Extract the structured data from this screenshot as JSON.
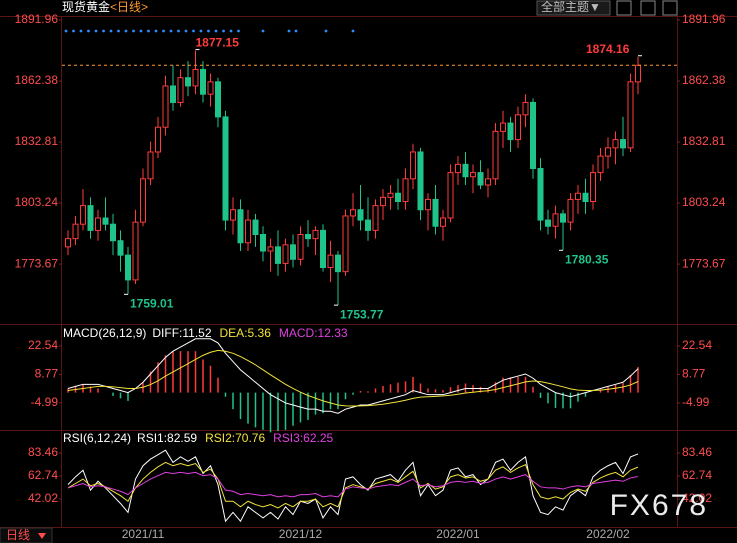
{
  "header": {
    "title": "现货黄金",
    "period": "<日线>",
    "theme_button": "全部主题▼"
  },
  "period_button": "日线",
  "watermark": "FX678",
  "chart_data": [
    {
      "type": "candlestick",
      "categories": [
        null,
        null,
        null,
        null,
        null,
        null,
        null,
        null,
        null,
        null,
        "2021/11",
        null,
        null,
        null,
        null,
        null,
        null,
        null,
        null,
        null,
        null,
        null,
        null,
        null,
        null,
        null,
        null,
        null,
        null,
        null,
        null,
        "2021/12",
        null,
        null,
        null,
        null,
        null,
        null,
        null,
        null,
        null,
        null,
        null,
        null,
        null,
        null,
        null,
        null,
        null,
        null,
        null,
        null,
        "2022/01",
        null,
        null,
        null,
        null,
        null,
        null,
        null,
        null,
        null,
        null,
        null,
        null,
        null,
        null,
        null,
        null,
        null,
        null,
        null,
        "2022/02",
        null,
        null,
        null,
        null
      ],
      "open": [
        1782,
        1786,
        1793,
        1802,
        1790,
        1796,
        1793,
        1785,
        1778,
        1766,
        1794,
        1815,
        1828,
        1840,
        1860,
        1852,
        1864,
        1860,
        1868,
        1856,
        1862,
        1845,
        1795,
        1800,
        1784,
        1795,
        1788,
        1780,
        1782,
        1774,
        1783,
        1776,
        1788,
        1786,
        1790,
        1772,
        1778,
        1770,
        1797,
        1800,
        1795,
        1790,
        1802,
        1806,
        1808,
        1804,
        1815,
        1828,
        1800,
        1805,
        1792,
        1796,
        1818,
        1822,
        1816,
        1818,
        1812,
        1815,
        1838,
        1842,
        1834,
        1846,
        1852,
        1820,
        1795,
        1792,
        1798,
        1794,
        1805,
        1808,
        1804,
        1818,
        1826,
        1830,
        1834,
        1830,
        1862
      ],
      "high": [
        1790,
        1797,
        1810,
        1806,
        1800,
        1806,
        1798,
        1790,
        1782,
        1800,
        1820,
        1833,
        1845,
        1865,
        1870,
        1868,
        1872,
        1877.15,
        1872,
        1866,
        1864,
        1848,
        1806,
        1805,
        1800,
        1798,
        1792,
        1786,
        1790,
        1786,
        1788,
        1792,
        1795,
        1792,
        1793,
        1785,
        1780,
        1800,
        1808,
        1812,
        1806,
        1805,
        1810,
        1812,
        1815,
        1820,
        1832,
        1830,
        1808,
        1812,
        1800,
        1822,
        1826,
        1828,
        1822,
        1824,
        1820,
        1842,
        1848,
        1845,
        1850,
        1856,
        1854,
        1825,
        1800,
        1802,
        1800,
        1808,
        1812,
        1815,
        1822,
        1830,
        1835,
        1838,
        1845,
        1866,
        1874.16
      ],
      "low": [
        1778,
        1783,
        1790,
        1786,
        1785,
        1790,
        1778,
        1770,
        1759.01,
        1764,
        1792,
        1812,
        1825,
        1836,
        1848,
        1850,
        1855,
        1856,
        1852,
        1850,
        1840,
        1790,
        1788,
        1780,
        1780,
        1782,
        1775,
        1770,
        1768,
        1770,
        1772,
        1773,
        1782,
        1778,
        1770,
        1765,
        1753.77,
        1768,
        1792,
        1790,
        1785,
        1786,
        1795,
        1800,
        1800,
        1800,
        1810,
        1795,
        1790,
        1788,
        1785,
        1794,
        1812,
        1812,
        1808,
        1810,
        1806,
        1812,
        1830,
        1828,
        1830,
        1840,
        1815,
        1790,
        1788,
        1786,
        1780.35,
        1790,
        1798,
        1798,
        1800,
        1814,
        1820,
        1822,
        1826,
        1828,
        1856
      ],
      "close": [
        1786,
        1793,
        1802,
        1790,
        1796,
        1793,
        1785,
        1778,
        1766,
        1794,
        1815,
        1828,
        1840,
        1860,
        1852,
        1864,
        1860,
        1868,
        1856,
        1862,
        1845,
        1795,
        1800,
        1784,
        1795,
        1788,
        1780,
        1782,
        1774,
        1783,
        1776,
        1788,
        1786,
        1790,
        1772,
        1778,
        1770,
        1797,
        1800,
        1795,
        1790,
        1802,
        1806,
        1808,
        1804,
        1815,
        1828,
        1800,
        1805,
        1792,
        1796,
        1818,
        1822,
        1816,
        1818,
        1812,
        1815,
        1838,
        1842,
        1834,
        1846,
        1852,
        1820,
        1795,
        1792,
        1798,
        1794,
        1805,
        1808,
        1804,
        1818,
        1826,
        1830,
        1834,
        1830,
        1862,
        1870
      ],
      "ylim": [
        1745.6,
        1891.96
      ],
      "yticks": [
        1891.96,
        1862.38,
        1832.81,
        1803.24,
        1773.67
      ],
      "up_color": "#ff3b3b",
      "down_color": "#1ec48a",
      "axis_color": "#ff4d4d",
      "price_line_color": "#ff9a2e"
    },
    {
      "type": "macd",
      "title": "MACD(26,12,9)",
      "series": [
        {
          "name": "DIFF:11.52",
          "color": "#ffffff",
          "kind": "line",
          "values": [
            2,
            3,
            4,
            4,
            4,
            3,
            2,
            1,
            0,
            2,
            5,
            9,
            13,
            17,
            20,
            22,
            24,
            26,
            26,
            26,
            24,
            19,
            15,
            11,
            8,
            5,
            2,
            -1,
            -3,
            -5,
            -6,
            -7,
            -8,
            -8,
            -9,
            -9,
            -10,
            -8,
            -7,
            -6,
            -6,
            -5,
            -4,
            -3,
            -2,
            -1,
            1,
            0,
            -1,
            -1,
            -1,
            0,
            1,
            2,
            2,
            2,
            2,
            4,
            6,
            7,
            8,
            9,
            7,
            4,
            2,
            0,
            -1,
            -2,
            -1,
            0,
            1,
            2,
            3,
            4,
            5,
            8,
            11.52
          ]
        },
        {
          "name": "DEA:5.36",
          "color": "#f2e33a",
          "kind": "line",
          "values": [
            1,
            1.5,
            2,
            2.5,
            3,
            3,
            2.8,
            2.4,
            2,
            2,
            2.6,
            3.9,
            5.7,
            8,
            10,
            12,
            14,
            16,
            18,
            19.5,
            20.4,
            20,
            19,
            17.4,
            15.5,
            13.4,
            11,
            8.6,
            6.3,
            4,
            2,
            0.2,
            -1.4,
            -2.7,
            -4,
            -5,
            -6,
            -6.4,
            -6.5,
            -6.4,
            -6.3,
            -6,
            -5.6,
            -5,
            -4.4,
            -3.7,
            -2.8,
            -2.2,
            -2,
            -1.8,
            -1.6,
            -1.3,
            -0.8,
            -0.2,
            0.2,
            0.6,
            0.9,
            1.5,
            2.4,
            3.3,
            4.2,
            5.2,
            5.6,
            5.3,
            4.6,
            3.7,
            2.8,
            1.8,
            1.2,
            1,
            1,
            1.2,
            1.6,
            2.1,
            2.7,
            3.7,
            5.36
          ]
        },
        {
          "name": "MACD:12.33",
          "color": "#e040e0",
          "kind": "bar",
          "values": [
            2,
            3,
            4,
            3,
            2,
            0,
            -1.6,
            -2.8,
            -4,
            0,
            4.8,
            10.2,
            14.6,
            18,
            20,
            20,
            20,
            20,
            16,
            13,
            7.2,
            -2,
            -8,
            -12.8,
            -15,
            -16.8,
            -18,
            -19.2,
            -18.6,
            -18,
            -16,
            -14.4,
            -13.2,
            -10.6,
            -10,
            -8,
            -8,
            -3.2,
            -1,
            0.8,
            0.6,
            2,
            3.2,
            4,
            4.8,
            5.4,
            7.6,
            4.4,
            2,
            1.6,
            1.2,
            2.6,
            3.6,
            4.4,
            3.6,
            2.8,
            2.2,
            5,
            7.2,
            7.4,
            7.6,
            7.6,
            2.8,
            -2.6,
            -5.2,
            -7.4,
            -7.6,
            -7.6,
            -4.4,
            -2,
            0,
            1.6,
            2.8,
            3.8,
            4.6,
            8.6,
            12.33
          ]
        }
      ],
      "ylim": [
        -17.1,
        31.7
      ],
      "yticks": [
        22.54,
        8.77,
        -4.99
      ],
      "up_color": "#ff3b3b",
      "down_color": "#1ec48a",
      "axis_color": "#ff4d4d"
    },
    {
      "type": "rsi",
      "title": "RSI(6,12,24)",
      "series": [
        {
          "name": "RSI1:82.59",
          "color": "#ffffff",
          "values": [
            55,
            62,
            68,
            50,
            58,
            52,
            45,
            38,
            30,
            60,
            72,
            78,
            82,
            86,
            75,
            80,
            76,
            80,
            65,
            72,
            55,
            22,
            30,
            22,
            35,
            30,
            25,
            30,
            24,
            35,
            28,
            40,
            38,
            42,
            25,
            35,
            28,
            60,
            62,
            55,
            50,
            60,
            62,
            64,
            58,
            68,
            75,
            45,
            55,
            45,
            50,
            68,
            70,
            62,
            64,
            55,
            60,
            75,
            78,
            68,
            75,
            80,
            45,
            30,
            28,
            35,
            32,
            45,
            50,
            45,
            62,
            68,
            72,
            75,
            65,
            80,
            82.59
          ]
        },
        {
          "name": "RSI2:70.76",
          "color": "#f2e33a",
          "values": [
            52,
            56,
            60,
            54,
            56,
            53,
            49,
            45,
            40,
            52,
            60,
            66,
            71,
            75,
            72,
            74,
            72,
            74,
            66,
            69,
            60,
            40,
            40,
            35,
            40,
            37,
            35,
            37,
            34,
            38,
            35,
            40,
            40,
            42,
            35,
            38,
            35,
            52,
            55,
            53,
            51,
            56,
            58,
            60,
            57,
            62,
            67,
            52,
            56,
            51,
            53,
            62,
            64,
            61,
            62,
            58,
            60,
            68,
            71,
            66,
            70,
            73,
            55,
            44,
            42,
            44,
            42,
            48,
            51,
            49,
            57,
            61,
            64,
            66,
            62,
            68,
            70.76
          ]
        },
        {
          "name": "RSI3:62.25",
          "color": "#e040e0",
          "values": [
            52,
            54,
            56,
            53,
            54,
            53,
            51,
            49,
            46,
            52,
            56,
            60,
            63,
            66,
            65,
            66,
            65,
            66,
            63,
            64,
            60,
            50,
            49,
            46,
            47,
            46,
            45,
            46,
            44,
            45,
            44,
            46,
            46,
            47,
            44,
            45,
            44,
            51,
            53,
            52,
            51,
            53,
            54,
            55,
            54,
            57,
            60,
            54,
            55,
            53,
            54,
            57,
            58,
            57,
            58,
            56,
            57,
            60,
            62,
            60,
            62,
            64,
            58,
            53,
            52,
            52,
            51,
            53,
            54,
            53,
            56,
            57,
            58,
            59,
            58,
            61,
            62.25
          ]
        }
      ],
      "ylim": [
        18.6,
        102.4
      ],
      "yticks": [
        83.46,
        62.74,
        42.02
      ],
      "axis_color": "#ff4d4d"
    }
  ]
}
